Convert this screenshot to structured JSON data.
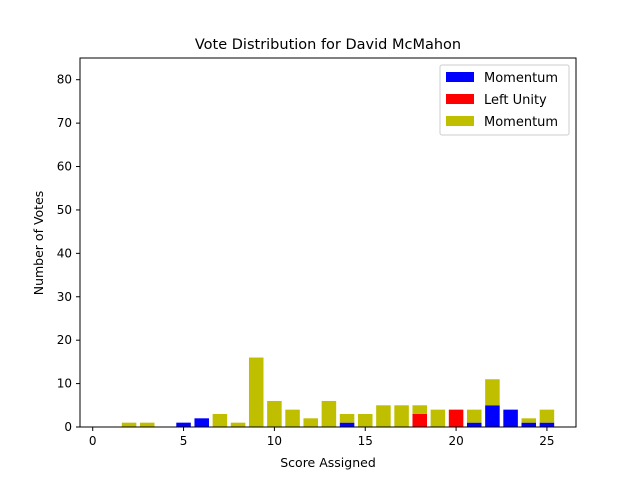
{
  "chart_data": {
    "type": "bar",
    "stacked": true,
    "title": "Vote Distribution for David McMahon",
    "xlabel": "Score Assigned",
    "ylabel": "Number of Votes",
    "xlim": [
      -0.7,
      26.6
    ],
    "ylim": [
      0,
      85
    ],
    "xticks": [
      0,
      5,
      10,
      15,
      20,
      25
    ],
    "yticks": [
      0,
      10,
      20,
      30,
      40,
      50,
      60,
      70,
      80
    ],
    "grid": false,
    "legend": "top-right",
    "series": [
      {
        "name": "Momentum",
        "color": "#0000ff",
        "x": [
          5,
          6,
          14,
          21,
          22,
          23,
          24,
          25
        ],
        "values": [
          1,
          2,
          1,
          1,
          5,
          4,
          1,
          1
        ]
      },
      {
        "name": "Left Unity",
        "color": "#ff0000",
        "x": [
          18,
          20
        ],
        "values": [
          3,
          4
        ]
      },
      {
        "name": "Momentum",
        "color": "#bfbf00",
        "x": [
          2,
          3,
          7,
          8,
          9,
          10,
          11,
          12,
          13,
          14,
          15,
          16,
          17,
          18,
          19,
          21,
          22,
          24,
          25
        ],
        "values": [
          1,
          1,
          3,
          1,
          16,
          6,
          4,
          2,
          6,
          2,
          3,
          5,
          5,
          2,
          4,
          3,
          6,
          1,
          3
        ]
      }
    ]
  }
}
